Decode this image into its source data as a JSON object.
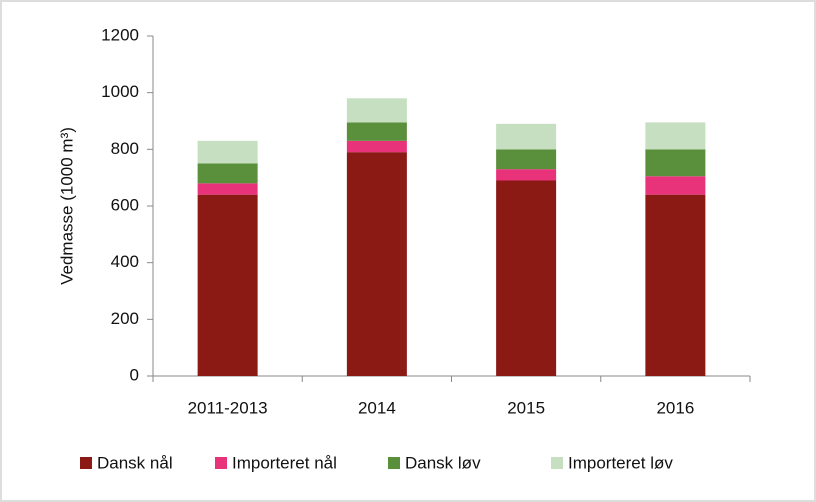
{
  "chart_data": {
    "type": "stacked_bar",
    "y_label": "Vedmasse (1000 m³)",
    "categories": [
      "2011-2013",
      "2014",
      "2015",
      "2016"
    ],
    "series": [
      {
        "name": "Dansk nål",
        "color": "#8b1a14",
        "values": [
          640,
          790,
          690,
          640
        ]
      },
      {
        "name": "Importeret nål",
        "color": "#e8337a",
        "values": [
          40,
          40,
          40,
          65
        ]
      },
      {
        "name": "Dansk løv",
        "color": "#5a8f3c",
        "values": [
          70,
          65,
          70,
          95
        ]
      },
      {
        "name": "Importeret løv",
        "color": "#c5dfc0",
        "values": [
          80,
          85,
          90,
          95
        ]
      }
    ],
    "ylim": [
      0,
      1200
    ],
    "yticks": [
      0,
      200,
      400,
      600,
      800,
      1000,
      1200
    ],
    "grid": false
  }
}
